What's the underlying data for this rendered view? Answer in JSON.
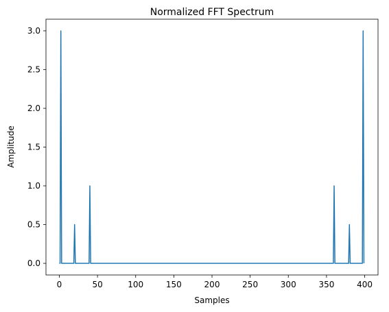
{
  "chart_data": {
    "type": "line",
    "title": "Normalized FFT Spectrum",
    "xlabel": "Samples",
    "ylabel": "Amplitude",
    "xlim": [
      -17.5,
      417.5
    ],
    "ylim": [
      -0.15,
      3.15
    ],
    "xticks": [
      0,
      50,
      100,
      150,
      200,
      250,
      300,
      350,
      400
    ],
    "yticks": [
      0.0,
      0.5,
      1.0,
      1.5,
      2.0,
      2.5,
      3.0
    ],
    "xtick_labels": [
      "0",
      "50",
      "100",
      "150",
      "200",
      "250",
      "300",
      "350",
      "400"
    ],
    "ytick_labels": [
      "0.0",
      "0.5",
      "1.0",
      "1.5",
      "2.0",
      "2.5",
      "3.0"
    ],
    "grid": false,
    "series": [
      {
        "color": "#1f77b4",
        "x": [
          0,
          1,
          2,
          3,
          19,
          20,
          21,
          39,
          40,
          41,
          359,
          360,
          361,
          379,
          380,
          381,
          397,
          398,
          399
        ],
        "y": [
          0,
          0,
          3.0,
          0,
          0,
          0.5,
          0,
          0,
          1.0,
          0,
          0,
          1.0,
          0,
          0,
          0.5,
          0,
          0,
          3.0,
          0
        ]
      }
    ]
  }
}
